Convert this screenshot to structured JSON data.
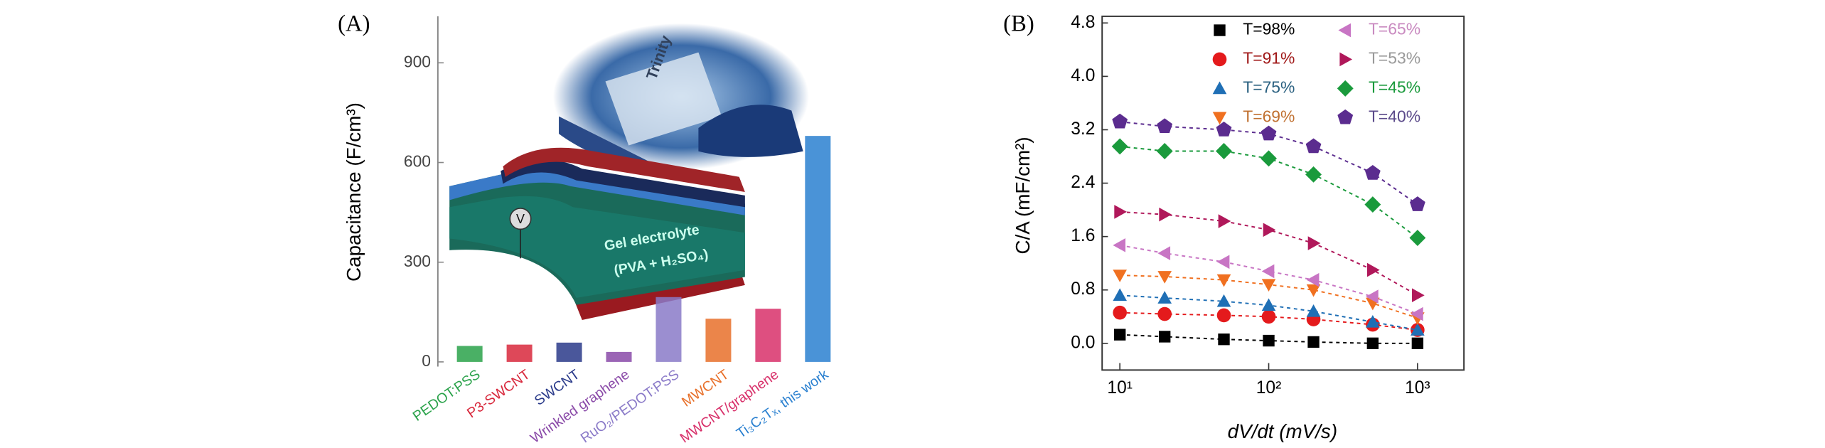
{
  "chart_data": [
    {
      "type": "bar",
      "panel": "(A)",
      "ylabel": "Capacitance (F/cm³)",
      "categories": [
        "PEDOT:PSS",
        "P3-SWCNT",
        "SWCNT",
        "Wrinkled graphene",
        "RuO₂/PEDOT:PSS",
        "MWCNT",
        "MWCNT/graphene",
        "Ti₃C₂Tₓ, this work"
      ],
      "values": [
        48,
        52,
        58,
        30,
        195,
        130,
        160,
        680
      ],
      "colors": [
        "#2aa24a",
        "#d8283c",
        "#2a3a8a",
        "#8a4aa8",
        "#8a7ac8",
        "#e8702a",
        "#d8306a",
        "#2a80d0"
      ],
      "ylim": [
        0,
        1040
      ],
      "yticks": [
        0,
        300,
        600,
        900
      ],
      "annotations": [
        "Gel electrolyte",
        "(PVA + H₂SO₄)",
        "V",
        "Trinity"
      ]
    },
    {
      "type": "scatter",
      "panel": "(B)",
      "xlabel": "dV/dt (mV/s)",
      "ylabel": "C/A (mF/cm²)",
      "xscale": "log",
      "xlim": [
        7.6,
        2050
      ],
      "ylim": [
        -0.4,
        4.9
      ],
      "xticks": [
        {
          "value": 10,
          "label": "10¹"
        },
        {
          "value": 100,
          "label": "10²"
        },
        {
          "value": 1000,
          "label": "10³"
        }
      ],
      "yticks": [
        {
          "value": 0,
          "label": "0.0"
        },
        0.8,
        1.6,
        2.4,
        3.2,
        {
          "value": 4,
          "label": "4.0"
        },
        4.8
      ],
      "x": [
        10,
        20,
        50,
        100,
        200,
        500,
        1000
      ],
      "series": [
        {
          "name": "T=98%",
          "color": "#000000",
          "label_color": "#000000",
          "marker": "square",
          "values": [
            0.13,
            0.1,
            0.06,
            0.04,
            0.02,
            0.0,
            0.0
          ]
        },
        {
          "name": "T=91%",
          "color": "#e41a1c",
          "label_color": "#a01818",
          "marker": "circle",
          "values": [
            0.46,
            0.44,
            0.42,
            0.4,
            0.36,
            0.28,
            0.2
          ]
        },
        {
          "name": "T=75%",
          "color": "#1f6fb5",
          "label_color": "#2a6080",
          "marker": "triangle-up",
          "values": [
            0.72,
            0.68,
            0.63,
            0.57,
            0.48,
            0.32,
            0.2
          ]
        },
        {
          "name": "T=69%",
          "color": "#f07020",
          "label_color": "#c07030",
          "marker": "triangle-down",
          "values": [
            1.02,
            1.0,
            0.95,
            0.88,
            0.8,
            0.6,
            0.38
          ]
        },
        {
          "name": "T=65%",
          "color": "#c875c4",
          "label_color": "#c98ac0",
          "marker": "triangle-left",
          "values": [
            1.47,
            1.35,
            1.22,
            1.08,
            0.95,
            0.7,
            0.44
          ]
        },
        {
          "name": "T=53%",
          "color": "#b0185a",
          "label_color": "#999999",
          "marker": "triangle-right",
          "values": [
            1.97,
            1.93,
            1.83,
            1.7,
            1.5,
            1.1,
            0.72
          ]
        },
        {
          "name": "T=45%",
          "color": "#1a9a3c",
          "label_color": "#1a9a3c",
          "marker": "diamond",
          "values": [
            2.95,
            2.88,
            2.88,
            2.77,
            2.53,
            2.08,
            1.58
          ]
        },
        {
          "name": "T=40%",
          "color": "#5b2c8f",
          "label_color": "#5b4a8a",
          "marker": "pentagon",
          "values": [
            3.32,
            3.25,
            3.2,
            3.14,
            2.95,
            2.55,
            2.08
          ]
        }
      ]
    }
  ]
}
